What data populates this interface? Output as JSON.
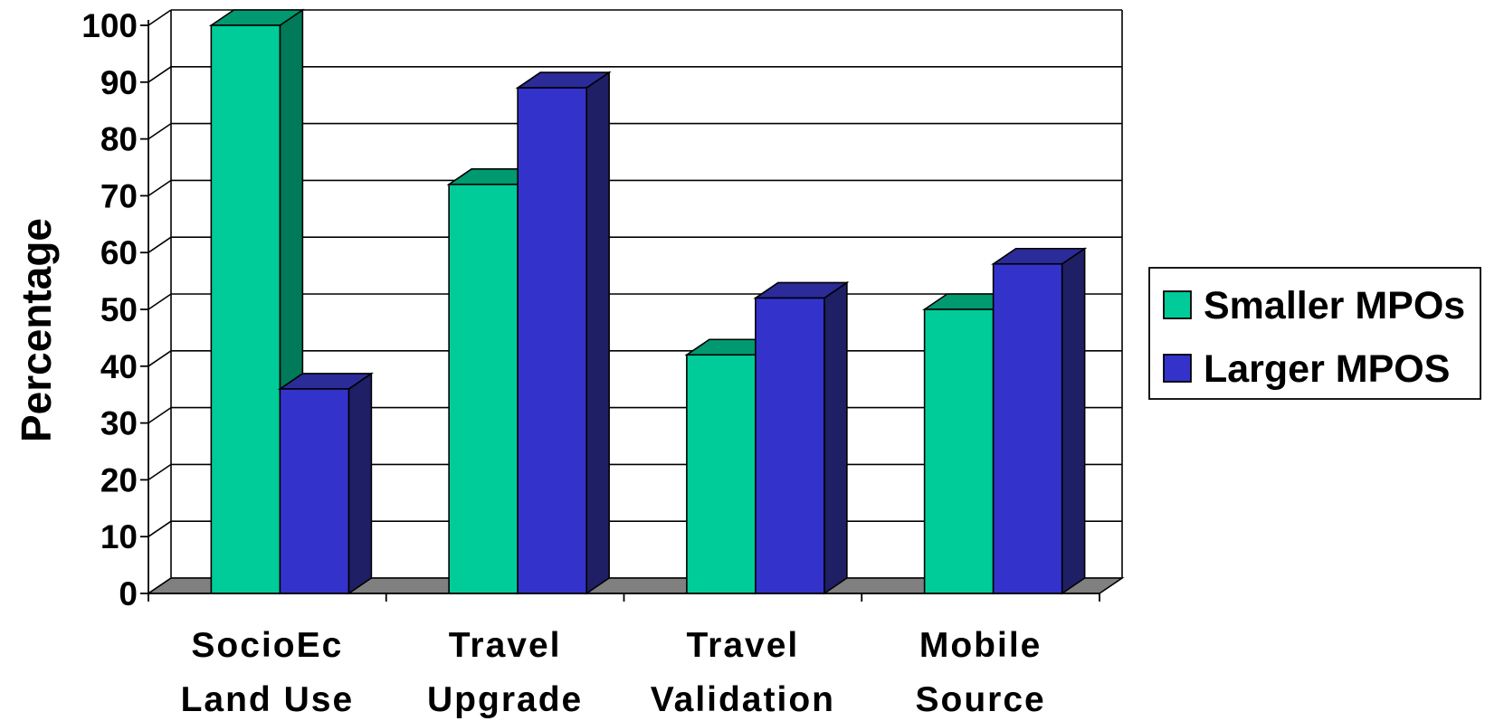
{
  "chart_data": {
    "type": "bar",
    "title": "",
    "xlabel": "",
    "ylabel": "Percentage",
    "ylim": [
      0,
      100
    ],
    "yticks": [
      "0",
      "10",
      "20",
      "30",
      "40",
      "50",
      "60",
      "70",
      "80",
      "90",
      "100"
    ],
    "grid": true,
    "three_d": true,
    "legend_position": "right",
    "categories": [
      [
        "SocioEc",
        "Land Use"
      ],
      [
        "Travel",
        "Upgrade"
      ],
      [
        "Travel",
        "Validation"
      ],
      [
        "Mobile",
        "Source"
      ]
    ],
    "series": [
      {
        "name": "Smaller MPOs",
        "values": [
          100,
          72,
          42,
          50
        ],
        "color": "#00CC99",
        "top_color": "#009970",
        "side_color": "#007A59"
      },
      {
        "name": "Larger MPOS",
        "values": [
          36,
          89,
          52,
          58
        ],
        "color": "#3333CC",
        "top_color": "#2B2B99",
        "side_color": "#1F1F66"
      }
    ],
    "colors": {
      "floor": "#808080",
      "grid": "#000000",
      "background": "#FFFFFF"
    }
  }
}
